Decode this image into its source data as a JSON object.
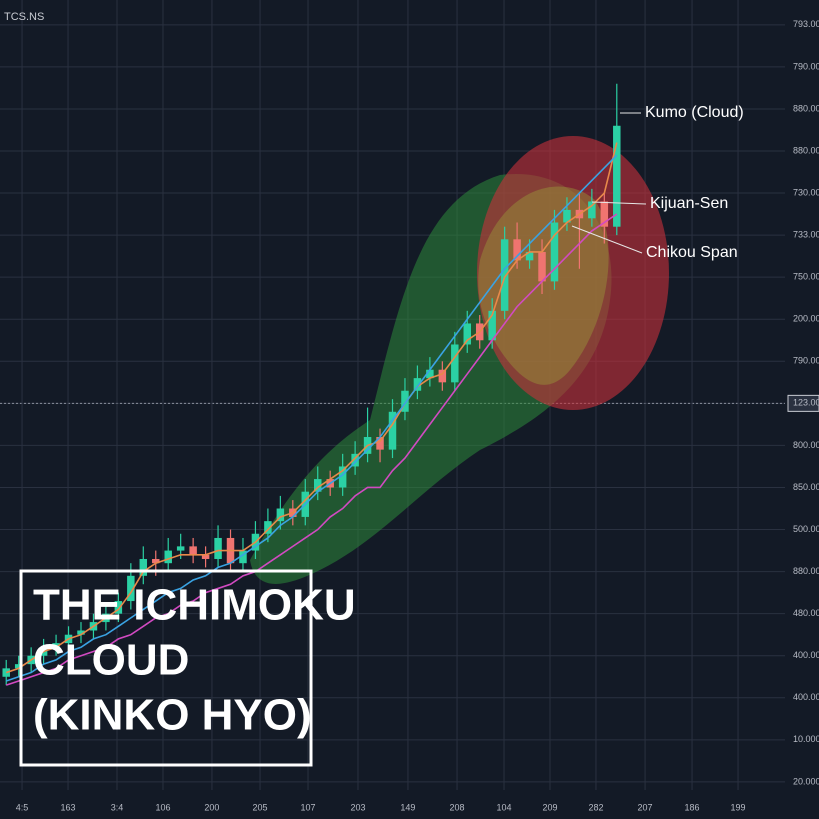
{
  "chart_data": {
    "type": "candlestick",
    "symbol": "TCS.NS",
    "title_lines": [
      "THE ICHIMOKU",
      "CLOUD",
      "(KINKO HYO)"
    ],
    "annotations": [
      "Kumo (Cloud)",
      "Kijuan-Sen",
      "Chikou Span"
    ],
    "x": [
      0,
      1,
      2,
      3,
      4,
      5,
      6,
      7,
      8,
      9,
      10,
      11,
      12,
      13,
      14,
      15,
      16,
      17,
      18,
      19,
      20,
      21,
      22,
      23,
      24,
      25,
      26,
      27,
      28,
      29,
      30,
      31,
      32,
      33,
      34,
      35,
      36,
      37,
      38,
      39,
      40,
      41,
      42,
      43,
      44,
      45,
      46,
      47,
      48,
      49
    ],
    "open": [
      2.5,
      2.7,
      2.8,
      3.0,
      3.2,
      3.3,
      3.5,
      3.6,
      3.8,
      4.0,
      4.3,
      4.9,
      5.3,
      5.2,
      5.5,
      5.6,
      5.4,
      5.3,
      5.8,
      5.2,
      5.5,
      5.9,
      6.2,
      6.5,
      6.3,
      6.9,
      7.2,
      7.0,
      7.5,
      7.8,
      8.2,
      7.9,
      8.8,
      9.3,
      9.6,
      9.8,
      9.5,
      10.4,
      10.9,
      10.5,
      11.2,
      12.9,
      12.4,
      12.6,
      11.9,
      13.3,
      13.6,
      13.4,
      13.8,
      13.2
    ],
    "high": [
      2.9,
      3.0,
      3.2,
      3.4,
      3.5,
      3.7,
      3.8,
      4.0,
      4.2,
      4.5,
      5.2,
      5.6,
      5.5,
      5.8,
      5.9,
      5.8,
      5.6,
      6.1,
      6.0,
      5.8,
      6.2,
      6.5,
      6.8,
      6.7,
      7.2,
      7.5,
      7.4,
      7.8,
      8.1,
      8.9,
      8.4,
      9.1,
      9.6,
      9.9,
      10.1,
      10.0,
      10.7,
      11.2,
      11.1,
      11.5,
      13.2,
      13.3,
      12.9,
      12.9,
      13.6,
      13.9,
      14.0,
      14.1,
      14.0,
      16.6
    ],
    "low": [
      2.3,
      2.5,
      2.6,
      2.8,
      3.0,
      3.1,
      3.3,
      3.4,
      3.6,
      3.8,
      4.1,
      4.7,
      4.9,
      5.0,
      5.3,
      5.2,
      5.1,
      5.1,
      5.0,
      5.0,
      5.3,
      5.7,
      6.0,
      6.1,
      6.1,
      6.7,
      6.8,
      6.8,
      7.3,
      7.6,
      7.6,
      7.7,
      8.6,
      9.1,
      9.4,
      9.3,
      9.3,
      10.2,
      10.3,
      10.3,
      11.0,
      12.2,
      12.2,
      11.6,
      11.7,
      13.1,
      12.2,
      13.2,
      12.8,
      13.0
    ],
    "close": [
      2.7,
      2.8,
      3.0,
      3.2,
      3.3,
      3.5,
      3.6,
      3.8,
      4.0,
      4.3,
      4.9,
      5.3,
      5.2,
      5.5,
      5.6,
      5.4,
      5.3,
      5.8,
      5.2,
      5.5,
      5.9,
      6.2,
      6.5,
      6.3,
      6.9,
      7.2,
      7.0,
      7.5,
      7.8,
      8.2,
      7.9,
      8.8,
      9.3,
      9.6,
      9.8,
      9.5,
      10.4,
      10.9,
      10.5,
      11.2,
      12.9,
      12.4,
      12.6,
      11.9,
      13.3,
      13.6,
      13.4,
      13.8,
      13.2,
      15.6
    ],
    "up_color": "#2bd1a4",
    "down_color": "#f07470",
    "lines": [
      {
        "color": "#e8894a",
        "values": [
          2.6,
          2.7,
          2.9,
          3.1,
          3.2,
          3.4,
          3.5,
          3.7,
          3.9,
          4.1,
          4.5,
          5.0,
          5.2,
          5.3,
          5.4,
          5.4,
          5.4,
          5.5,
          5.5,
          5.5,
          5.7,
          6.0,
          6.3,
          6.4,
          6.7,
          7.0,
          7.2,
          7.4,
          7.7,
          8.0,
          8.1,
          8.5,
          9.0,
          9.4,
          9.6,
          9.7,
          10.1,
          10.5,
          10.7,
          11.1,
          12.0,
          12.4,
          12.6,
          12.6,
          13.0,
          13.3,
          13.5,
          13.7,
          14.0,
          15.2
        ]
      },
      {
        "color": "#3aa3e3",
        "values": [
          2.4,
          2.5,
          2.6,
          2.8,
          2.9,
          3.1,
          3.2,
          3.4,
          3.5,
          3.7,
          3.9,
          4.1,
          4.3,
          4.5,
          4.6,
          4.8,
          4.9,
          5.1,
          5.2,
          5.4,
          5.6,
          5.8,
          6.1,
          6.3,
          6.6,
          6.9,
          7.1,
          7.3,
          7.6,
          7.9,
          8.2,
          8.6,
          9.0,
          9.4,
          9.8,
          10.2,
          10.6,
          11.0,
          11.4,
          11.8,
          12.2,
          12.5,
          12.8,
          13.1,
          13.4,
          13.7,
          14.0,
          14.3,
          14.6,
          14.9
        ]
      },
      {
        "color": "#d24ac2",
        "values": [
          2.3,
          2.4,
          2.5,
          2.6,
          2.7,
          2.9,
          3.0,
          3.1,
          3.2,
          3.4,
          3.5,
          3.7,
          3.9,
          4.0,
          4.2,
          4.3,
          4.5,
          4.6,
          4.7,
          4.9,
          5.0,
          5.2,
          5.4,
          5.6,
          5.8,
          6.0,
          6.3,
          6.5,
          6.8,
          7.0,
          7.0,
          7.4,
          7.7,
          8.1,
          8.5,
          8.9,
          9.3,
          9.7,
          10.1,
          10.5,
          10.9,
          11.3,
          11.6,
          11.9,
          12.2,
          12.5,
          12.8,
          13.1,
          13.3,
          13.5
        ]
      }
    ],
    "xlim": [
      -0.5,
      62.5
    ],
    "xticks": [
      {
        "value": 1.27,
        "label": "4:5"
      },
      {
        "value": 4.96,
        "label": "163"
      },
      {
        "value": 8.89,
        "label": "3:4"
      },
      {
        "value": 12.58,
        "label": "106"
      },
      {
        "value": 16.51,
        "label": "200"
      },
      {
        "value": 20.37,
        "label": "205"
      },
      {
        "value": 24.22,
        "label": "107"
      },
      {
        "value": 28.23,
        "label": "203"
      },
      {
        "value": 32.24,
        "label": "149"
      },
      {
        "value": 36.18,
        "label": "208"
      },
      {
        "value": 39.95,
        "label": "104"
      },
      {
        "value": 43.64,
        "label": "209"
      },
      {
        "value": 47.33,
        "label": "282"
      },
      {
        "value": 51.27,
        "label": "207"
      },
      {
        "value": 55.04,
        "label": "186"
      },
      {
        "value": 58.73,
        "label": "199"
      }
    ],
    "ylim": [
      -0.43,
      18.59
    ],
    "yticks": [
      {
        "value": 18,
        "label": "793.00"
      },
      {
        "value": 17,
        "label": "790.00"
      },
      {
        "value": 16,
        "label": "880.00"
      },
      {
        "value": 15,
        "label": "880.00"
      },
      {
        "value": 14,
        "label": "730.00"
      },
      {
        "value": 13,
        "label": "733.00"
      },
      {
        "value": 12,
        "label": "750.00"
      },
      {
        "value": 11,
        "label": "200.00"
      },
      {
        "value": 10,
        "label": "790.00"
      },
      {
        "value": 9,
        "label": "123.00"
      },
      {
        "value": 8,
        "label": "800.00"
      },
      {
        "value": 7,
        "label": "850.00"
      },
      {
        "value": 6,
        "label": "500.00"
      },
      {
        "value": 5,
        "label": "880.00"
      },
      {
        "value": 4,
        "label": "480.00"
      },
      {
        "value": 3,
        "label": "400.00"
      },
      {
        "value": 2,
        "label": "400.00"
      },
      {
        "value": 1,
        "label": "10.000"
      },
      {
        "value": 0,
        "label": "20.000"
      }
    ],
    "price_line": 9,
    "grid": true
  }
}
